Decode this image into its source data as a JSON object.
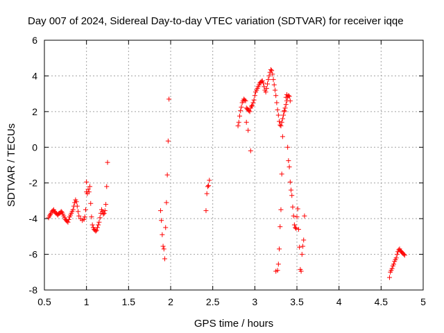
{
  "chart_data": {
    "type": "scatter",
    "title": "Day 007 of 2024, Sidereal Day-to-day VTEC variation (SDTVAR) for receiver iqqe",
    "xlabel": "GPS time / hours",
    "ylabel": "SDTVAR / TECUs",
    "xlim": [
      0.5,
      5.0
    ],
    "ylim": [
      -8,
      6
    ],
    "xticks": [
      0.5,
      1.0,
      1.5,
      2.0,
      2.5,
      3.0,
      3.5,
      4.0,
      4.5,
      5.0
    ],
    "xtick_labels": [
      "0.5",
      "1",
      "1.5",
      "2",
      "2.5",
      "3",
      "3.5",
      "4",
      "4.5",
      "5"
    ],
    "yticks": [
      -8,
      -6,
      -4,
      -2,
      0,
      2,
      4,
      6
    ],
    "ytick_labels": [
      "-8",
      "-6",
      "-4",
      "-2",
      "0",
      "2",
      "4",
      "6"
    ],
    "grid": true,
    "marker": "+",
    "color": "#ff0000",
    "series": [
      {
        "name": "SDTVAR",
        "points": [
          [
            0.55,
            -3.95
          ],
          [
            0.56,
            -3.85
          ],
          [
            0.57,
            -3.78
          ],
          [
            0.58,
            -3.7
          ],
          [
            0.59,
            -3.6
          ],
          [
            0.6,
            -3.55
          ],
          [
            0.61,
            -3.5
          ],
          [
            0.62,
            -3.6
          ],
          [
            0.63,
            -3.65
          ],
          [
            0.64,
            -3.7
          ],
          [
            0.65,
            -3.75
          ],
          [
            0.66,
            -3.8
          ],
          [
            0.67,
            -3.72
          ],
          [
            0.68,
            -3.7
          ],
          [
            0.69,
            -3.65
          ],
          [
            0.7,
            -3.6
          ],
          [
            0.71,
            -3.65
          ],
          [
            0.72,
            -3.75
          ],
          [
            0.73,
            -3.85
          ],
          [
            0.74,
            -3.95
          ],
          [
            0.75,
            -4.05
          ],
          [
            0.76,
            -4.1
          ],
          [
            0.77,
            -4.15
          ],
          [
            0.78,
            -4.2
          ],
          [
            0.79,
            -4.05
          ],
          [
            0.8,
            -3.9
          ],
          [
            0.81,
            -3.8
          ],
          [
            0.82,
            -3.7
          ],
          [
            0.83,
            -3.6
          ],
          [
            0.84,
            -3.5
          ],
          [
            0.85,
            -3.3
          ],
          [
            0.86,
            -3.1
          ],
          [
            0.87,
            -2.95
          ],
          [
            0.88,
            -3.05
          ],
          [
            0.89,
            -3.3
          ],
          [
            0.9,
            -3.6
          ],
          [
            0.91,
            -3.85
          ],
          [
            0.93,
            -4.0
          ],
          [
            0.95,
            -4.1
          ],
          [
            0.97,
            -4.05
          ],
          [
            0.98,
            -3.9
          ],
          [
            0.99,
            -3.5
          ],
          [
            1.0,
            -2.5
          ],
          [
            1.0,
            -1.95
          ],
          [
            1.01,
            -2.6
          ],
          [
            1.02,
            -2.35
          ],
          [
            1.03,
            -2.5
          ],
          [
            1.04,
            -2.2
          ],
          [
            1.05,
            -3.15
          ],
          [
            1.06,
            -3.9
          ],
          [
            1.07,
            -4.35
          ],
          [
            1.08,
            -4.5
          ],
          [
            1.09,
            -4.6
          ],
          [
            1.1,
            -4.65
          ],
          [
            1.11,
            -4.7
          ],
          [
            1.12,
            -4.65
          ],
          [
            1.13,
            -4.5
          ],
          [
            1.14,
            -4.35
          ],
          [
            1.15,
            -4.2
          ],
          [
            1.16,
            -3.95
          ],
          [
            1.17,
            -3.7
          ],
          [
            1.18,
            -3.5
          ],
          [
            1.19,
            -3.6
          ],
          [
            1.2,
            -3.75
          ],
          [
            1.21,
            -3.7
          ],
          [
            1.22,
            -3.55
          ],
          [
            1.23,
            -3.2
          ],
          [
            1.24,
            -2.2
          ],
          [
            1.25,
            -0.85
          ],
          [
            1.88,
            -3.55
          ],
          [
            1.89,
            -4.1
          ],
          [
            1.9,
            -4.9
          ],
          [
            1.91,
            -5.55
          ],
          [
            1.92,
            -5.7
          ],
          [
            1.93,
            -6.25
          ],
          [
            1.94,
            -4.5
          ],
          [
            1.95,
            -3.1
          ],
          [
            1.96,
            -1.55
          ],
          [
            1.97,
            0.35
          ],
          [
            1.98,
            2.7
          ],
          [
            2.42,
            -3.55
          ],
          [
            2.43,
            -2.6
          ],
          [
            2.44,
            -2.2
          ],
          [
            2.45,
            -2.15
          ],
          [
            2.46,
            -1.85
          ],
          [
            2.8,
            1.2
          ],
          [
            2.81,
            1.4
          ],
          [
            2.82,
            1.75
          ],
          [
            2.83,
            2.05
          ],
          [
            2.84,
            2.25
          ],
          [
            2.85,
            2.5
          ],
          [
            2.86,
            2.6
          ],
          [
            2.87,
            2.7
          ],
          [
            2.88,
            2.65
          ],
          [
            2.89,
            2.6
          ],
          [
            2.9,
            2.2
          ],
          [
            2.91,
            2.15
          ],
          [
            2.92,
            2.1
          ],
          [
            2.93,
            2.05
          ],
          [
            2.94,
            2.0
          ],
          [
            2.95,
            2.2
          ],
          [
            2.96,
            2.3
          ],
          [
            2.97,
            2.35
          ],
          [
            2.98,
            2.5
          ],
          [
            2.99,
            2.65
          ],
          [
            3.0,
            2.9
          ],
          [
            3.01,
            3.1
          ],
          [
            3.02,
            3.2
          ],
          [
            3.03,
            3.3
          ],
          [
            3.04,
            3.4
          ],
          [
            3.05,
            3.5
          ],
          [
            3.06,
            3.6
          ],
          [
            3.07,
            3.65
          ],
          [
            3.08,
            3.7
          ],
          [
            3.09,
            3.72
          ],
          [
            3.1,
            3.6
          ],
          [
            3.11,
            3.4
          ],
          [
            3.12,
            3.2
          ],
          [
            3.13,
            3.1
          ],
          [
            3.14,
            3.3
          ],
          [
            3.15,
            3.55
          ],
          [
            3.16,
            3.8
          ],
          [
            3.17,
            4.0
          ],
          [
            3.18,
            4.2
          ],
          [
            3.19,
            4.35
          ],
          [
            3.2,
            4.3
          ],
          [
            3.21,
            4.1
          ],
          [
            3.22,
            3.8
          ],
          [
            3.23,
            3.5
          ],
          [
            3.24,
            3.2
          ],
          [
            3.25,
            2.9
          ],
          [
            3.26,
            2.5
          ],
          [
            3.27,
            2.1
          ],
          [
            3.28,
            1.8
          ],
          [
            3.29,
            1.45
          ],
          [
            3.3,
            1.25
          ],
          [
            3.31,
            1.2
          ],
          [
            3.32,
            1.4
          ],
          [
            3.33,
            1.6
          ],
          [
            3.34,
            1.8
          ],
          [
            3.35,
            2.0
          ],
          [
            3.36,
            2.2
          ],
          [
            3.37,
            2.4
          ],
          [
            3.38,
            2.6
          ],
          [
            3.39,
            2.8
          ],
          [
            3.4,
            2.9
          ],
          [
            3.41,
            2.85
          ],
          [
            3.42,
            2.6
          ],
          [
            2.9,
            1.4
          ],
          [
            2.92,
            0.95
          ],
          [
            2.95,
            -0.2
          ],
          [
            3.25,
            -6.95
          ],
          [
            3.27,
            -6.9
          ],
          [
            3.28,
            -6.55
          ],
          [
            3.29,
            -5.7
          ],
          [
            3.3,
            -4.45
          ],
          [
            3.31,
            -3.5
          ],
          [
            3.32,
            -1.5
          ],
          [
            3.33,
            0.6
          ],
          [
            3.35,
            2.05
          ],
          [
            3.37,
            2.8
          ],
          [
            3.38,
            2.95
          ],
          [
            3.39,
            0.0
          ],
          [
            3.4,
            -0.75
          ],
          [
            3.41,
            -1.1
          ],
          [
            3.42,
            -1.95
          ],
          [
            3.43,
            -2.4
          ],
          [
            3.44,
            -2.7
          ],
          [
            3.45,
            -3.35
          ],
          [
            3.46,
            -3.85
          ],
          [
            3.47,
            -4.35
          ],
          [
            3.48,
            -4.5
          ],
          [
            3.49,
            -4.55
          ],
          [
            3.5,
            -3.9
          ],
          [
            3.51,
            -3.45
          ],
          [
            3.52,
            -4.6
          ],
          [
            3.53,
            -5.6
          ],
          [
            3.54,
            -6.85
          ],
          [
            3.55,
            -6.95
          ],
          [
            3.56,
            -6.0
          ],
          [
            3.57,
            -5.55
          ],
          [
            3.58,
            -5.2
          ],
          [
            3.59,
            -3.85
          ],
          [
            4.6,
            -7.3
          ],
          [
            4.61,
            -7.0
          ],
          [
            4.62,
            -6.9
          ],
          [
            4.63,
            -6.8
          ],
          [
            4.64,
            -6.65
          ],
          [
            4.65,
            -6.55
          ],
          [
            4.66,
            -6.4
          ],
          [
            4.67,
            -6.3
          ],
          [
            4.68,
            -6.2
          ],
          [
            4.69,
            -6.0
          ],
          [
            4.7,
            -5.85
          ],
          [
            4.71,
            -5.75
          ],
          [
            4.72,
            -5.7
          ],
          [
            4.73,
            -5.8
          ],
          [
            4.74,
            -5.85
          ],
          [
            4.75,
            -5.9
          ],
          [
            4.76,
            -5.95
          ],
          [
            4.77,
            -6.0
          ],
          [
            4.78,
            -6.05
          ]
        ]
      }
    ]
  }
}
